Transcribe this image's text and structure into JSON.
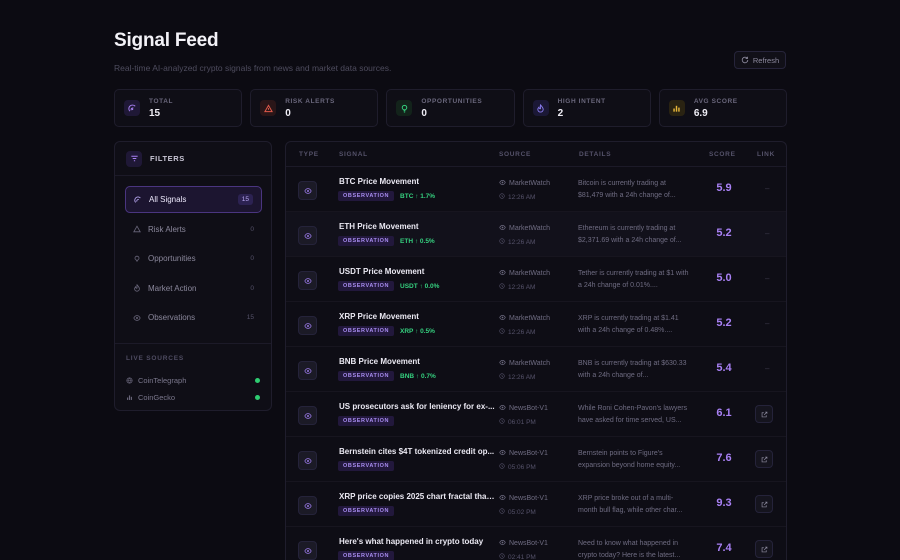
{
  "header": {
    "title": "Signal Feed",
    "subtitle": "Real-time AI-analyzed crypto signals from news and market data sources.",
    "refresh_label": "Refresh"
  },
  "stats": [
    {
      "label": "TOTAL",
      "value": "15",
      "icon": "signal-icon",
      "color": "#a880f4"
    },
    {
      "label": "RISK ALERTS",
      "value": "0",
      "icon": "warning-icon",
      "color": "#e0594a"
    },
    {
      "label": "OPPORTUNITIES",
      "value": "0",
      "icon": "lightbulb-icon",
      "color": "#35d07f"
    },
    {
      "label": "HIGH INTENT",
      "value": "2",
      "icon": "flame-icon",
      "color": "#8a7cf0"
    },
    {
      "label": "AVG SCORE",
      "value": "6.9",
      "icon": "bar-chart-icon",
      "color": "#e8b73a"
    }
  ],
  "filters": {
    "title": "FILTERS",
    "items": [
      {
        "label": "All Signals",
        "count": "15"
      },
      {
        "label": "Risk Alerts",
        "count": "0"
      },
      {
        "label": "Opportunities",
        "count": "0"
      },
      {
        "label": "Market Action",
        "count": "0"
      },
      {
        "label": "Observations",
        "count": "15"
      }
    ],
    "sources_title": "LIVE SOURCES",
    "sources": [
      {
        "name": "CoinTelegraph",
        "status_color": "#2ecc71"
      },
      {
        "name": "CoinGecko",
        "status_color": "#2ecc71"
      }
    ]
  },
  "table": {
    "columns": [
      "TYPE",
      "SIGNAL",
      "SOURCE",
      "DETAILS",
      "SCORE",
      "LINK"
    ],
    "rows": [
      {
        "title": "BTC Price Movement",
        "tag": "OBSERVATION",
        "change": "BTC ↑ 1.7%",
        "source": "MarketWatch",
        "time": "12:26 AM",
        "details": "Bitcoin is currently trading at $81,479 with a 24h change of...",
        "score": "5.9",
        "link": "–"
      },
      {
        "title": "ETH Price Movement",
        "tag": "OBSERVATION",
        "change": "ETH ↑ 0.5%",
        "source": "MarketWatch",
        "time": "12:26 AM",
        "details": "Ethereum is currently trading at $2,371.69 with a 24h change of...",
        "score": "5.2",
        "link": "–"
      },
      {
        "title": "USDT Price Movement",
        "tag": "OBSERVATION",
        "change": "USDT ↑ 0.0%",
        "source": "MarketWatch",
        "time": "12:26 AM",
        "details": "Tether is currently trading at $1 with a 24h change of 0.01%....",
        "score": "5.0",
        "link": "–"
      },
      {
        "title": "XRP Price Movement",
        "tag": "OBSERVATION",
        "change": "XRP ↑ 0.5%",
        "source": "MarketWatch",
        "time": "12:26 AM",
        "details": "XRP is currently trading at $1.41 with a 24h change of 0.48%....",
        "score": "5.2",
        "link": "–"
      },
      {
        "title": "BNB Price Movement",
        "tag": "OBSERVATION",
        "change": "BNB ↑ 0.7%",
        "source": "MarketWatch",
        "time": "12:26 AM",
        "details": "BNB is currently trading at $630.33 with a 24h change of...",
        "score": "5.4",
        "link": "–"
      },
      {
        "title": "US prosecutors ask for leniency for ex-...",
        "tag": "OBSERVATION",
        "change": "",
        "source": "NewsBot-V1",
        "time": "06:01 PM",
        "details": "While Roni Cohen-Pavon's lawyers have asked for time served, US...",
        "score": "6.1",
        "link": "external-link-icon"
      },
      {
        "title": "Bernstein cites $4T tokenized credit op...",
        "tag": "OBSERVATION",
        "change": "",
        "source": "NewsBot-V1",
        "time": "05:06 PM",
        "details": "Bernstein points to Figure's expansion beyond home equity...",
        "score": "7.6",
        "link": "external-link-icon"
      },
      {
        "title": "XRP price copies 2025 chart fractal that...",
        "tag": "OBSERVATION",
        "change": "",
        "source": "NewsBot-V1",
        "time": "05:02 PM",
        "details": "XRP price broke out of a multi-month bull flag, while other char...",
        "score": "9.3",
        "link": "external-link-icon"
      },
      {
        "title": "Here's what happened in crypto today",
        "tag": "OBSERVATION",
        "change": "",
        "source": "NewsBot-V1",
        "time": "02:41 PM",
        "details": "Need to know what happened in crypto today? Here is the latest...",
        "score": "7.4",
        "link": "external-link-icon"
      }
    ]
  }
}
